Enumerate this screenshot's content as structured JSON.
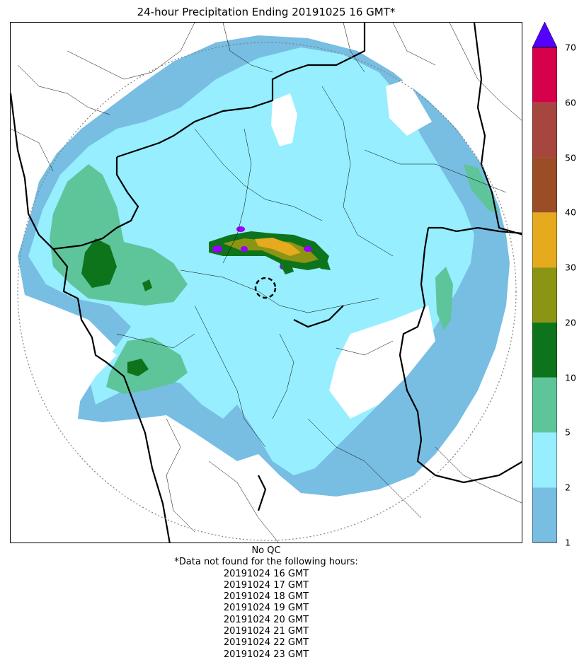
{
  "title": "24-hour Precipitation Ending 20191025 16 GMT*",
  "colorbar": {
    "labels": [
      "1",
      "2",
      "5",
      "10",
      "20",
      "30",
      "40",
      "50",
      "60",
      "70"
    ],
    "colors": [
      "#78bde2",
      "#96eefe",
      "#5ec59b",
      "#0e741b",
      "#8c9414",
      "#e6aa1e",
      "#9b4e26",
      "#a6463f",
      "#d7004b"
    ],
    "extend_color": "#5300ff"
  },
  "map": {
    "colors": {
      "light_blue": "#78bde2",
      "cyan": "#96eefe",
      "light_green": "#5ec59b",
      "dark_green": "#0e741b",
      "olive": "#8c9414",
      "orange": "#e6aa1e",
      "purple": "#9900ff",
      "range_ring": "#808080",
      "border": "#000000"
    }
  },
  "footer": {
    "qc": "No QC",
    "note": "*Data not found for the following hours:",
    "hours": [
      "20191024 16 GMT",
      "20191024 17 GMT",
      "20191024 18 GMT",
      "20191024 19 GMT",
      "20191024 20 GMT",
      "20191024 21 GMT",
      "20191024 22 GMT",
      "20191024 23 GMT"
    ]
  }
}
